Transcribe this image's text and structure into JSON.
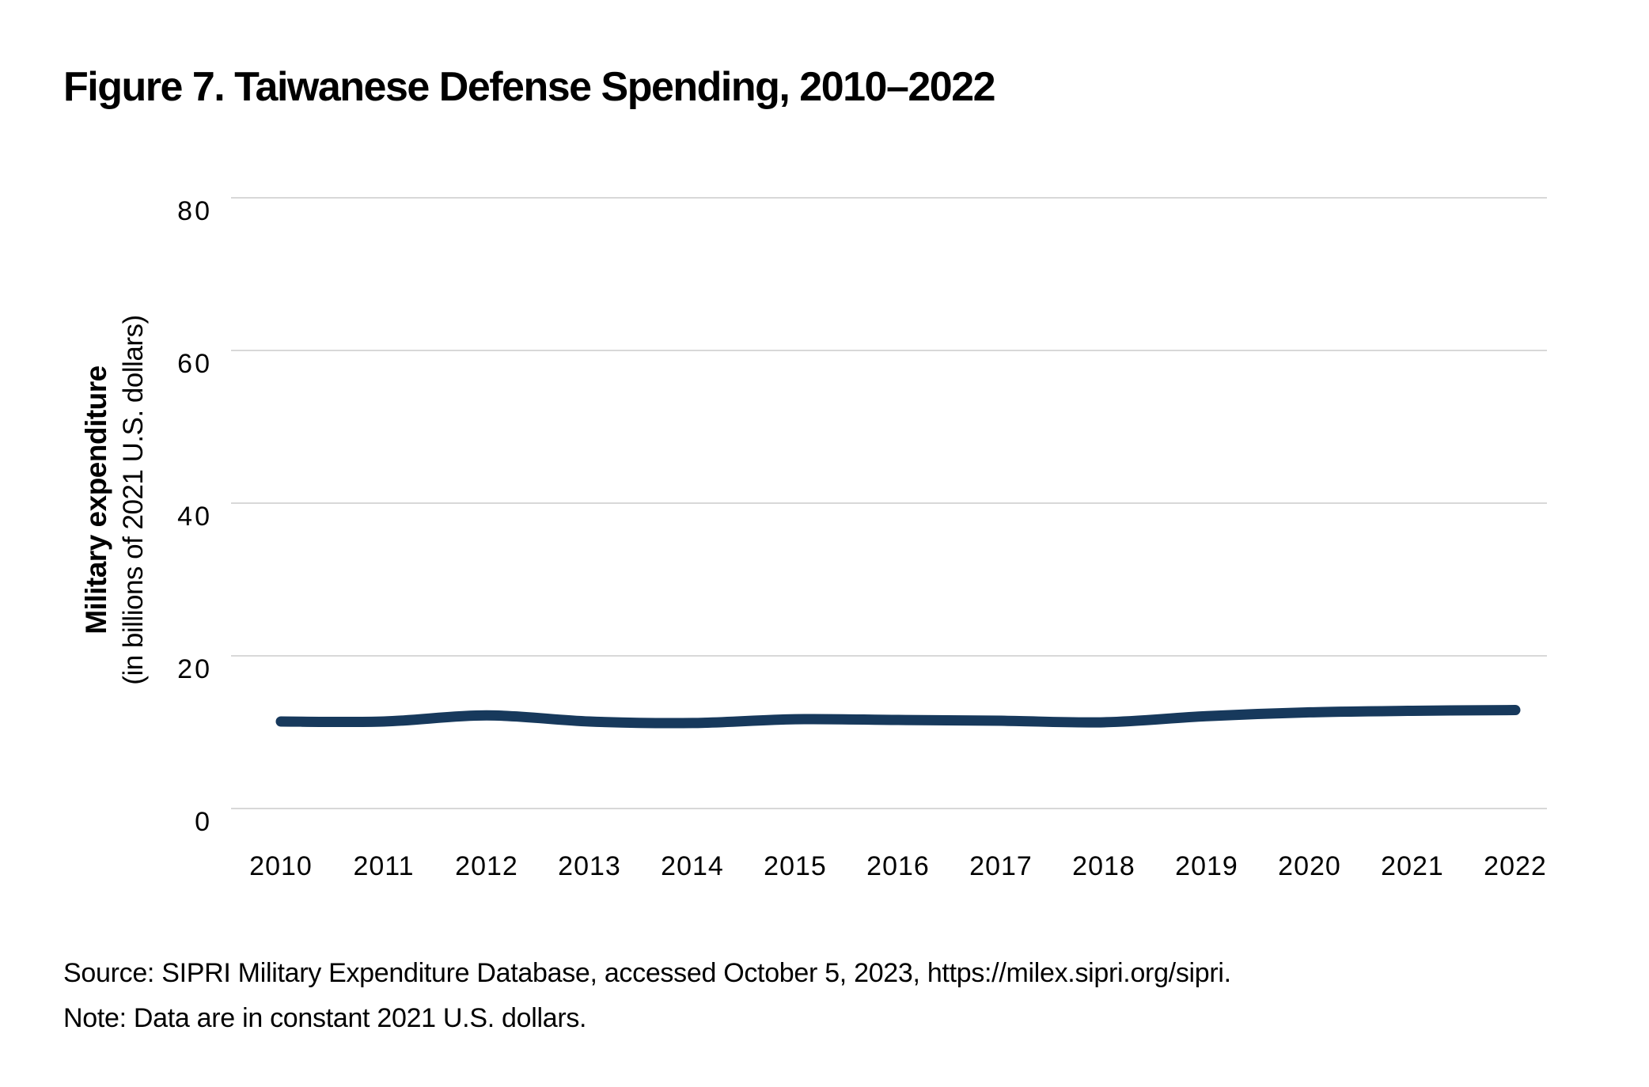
{
  "figure": {
    "title": "Figure 7. Taiwanese Defense Spending, 2010–2022",
    "source": "Source: SIPRI Military Expenditure Database, accessed October 5, 2023, https://milex.sipri.org/sipri.",
    "note": "Note: Data are in constant 2021 U.S. dollars."
  },
  "colors": {
    "line": "#17395C",
    "gridline": "#D8D8D8",
    "text": "#000000",
    "background": "#FFFFFF"
  },
  "chart_data": {
    "type": "line",
    "title": "Figure 7. Taiwanese Defense Spending, 2010–2022",
    "categories": [
      "2010",
      "2011",
      "2012",
      "2013",
      "2014",
      "2015",
      "2016",
      "2017",
      "2018",
      "2019",
      "2020",
      "2021",
      "2022"
    ],
    "series": [
      {
        "name": "Taiwanese military expenditure",
        "values": [
          11.4,
          11.4,
          12.2,
          11.4,
          11.2,
          11.7,
          11.6,
          11.5,
          11.3,
          12.1,
          12.6,
          12.8,
          12.9
        ]
      }
    ],
    "xlabel": "",
    "ylabel": "Military expenditure (in billions of 2021 U.S. dollars)",
    "ylabel_line1": "Military expenditure",
    "ylabel_line2": "(in billions of 2021 U.S. dollars)",
    "yticks": [
      0,
      20,
      40,
      60,
      80
    ],
    "ylim": [
      0,
      80
    ],
    "grid": "horizontal-only",
    "legend": "none",
    "line_style": "smooth, thick, rounded ends"
  }
}
